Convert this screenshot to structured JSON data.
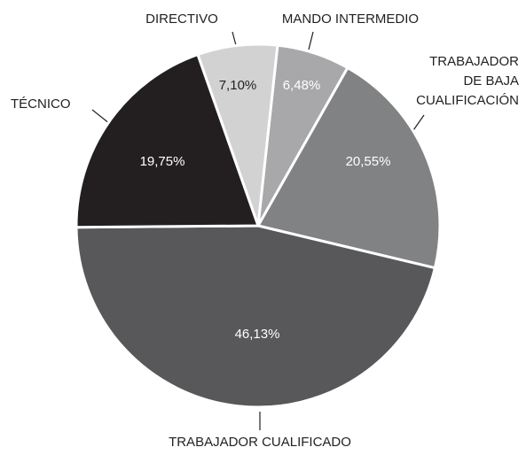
{
  "chart_data": {
    "type": "pie",
    "categories": [
      "DIRECTIVO",
      "MANDO INTERMEDIO",
      "TRABAJADOR DE BAJA CUALIFICACIÓN",
      "TRABAJADOR CUALIFICADO",
      "TÉCNICO"
    ],
    "values": [
      7.1,
      6.48,
      20.55,
      46.13,
      19.75
    ],
    "value_labels": [
      "7,10%",
      "6,48%",
      "20,55%",
      "46,13%",
      "19,75%"
    ],
    "colors": [
      "#d2d2d3",
      "#a8a8aa",
      "#818284",
      "#58585a",
      "#231f20"
    ]
  }
}
